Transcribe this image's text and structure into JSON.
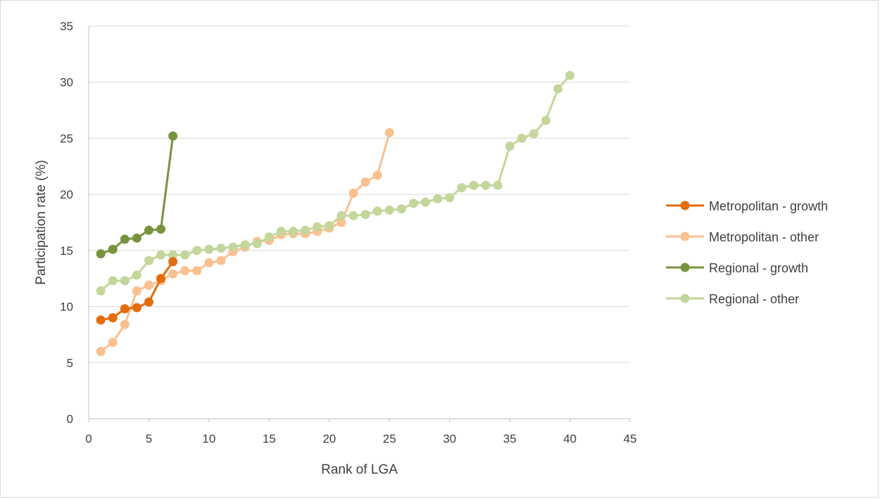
{
  "chart_data": {
    "type": "line",
    "title": "",
    "xlabel": "Rank of LGA",
    "ylabel": "Participation rate (%)",
    "xlim": [
      0,
      45
    ],
    "ylim": [
      0,
      35
    ],
    "xticks": [
      "0",
      "5",
      "10",
      "15",
      "20",
      "25",
      "30",
      "35",
      "40",
      "45"
    ],
    "yticks": [
      "0",
      "5",
      "10",
      "15",
      "20",
      "25",
      "30",
      "35"
    ],
    "grid": "horizontal",
    "legend": "right",
    "series": [
      {
        "name": "Metropolitan - growth",
        "color": "#e46c0a",
        "x": [
          1,
          2,
          3,
          4,
          5,
          6,
          7
        ],
        "y": [
          8.8,
          9.0,
          9.8,
          9.9,
          10.4,
          12.5,
          14.0
        ]
      },
      {
        "name": "Metropolitan - other",
        "color": "#fac090",
        "x": [
          1,
          2,
          3,
          4,
          5,
          6,
          7,
          8,
          9,
          10,
          11,
          12,
          13,
          14,
          15,
          16,
          17,
          18,
          19,
          20,
          21,
          22,
          23,
          24,
          25
        ],
        "y": [
          6.0,
          6.8,
          8.4,
          11.4,
          11.9,
          12.3,
          12.9,
          13.2,
          13.2,
          13.9,
          14.1,
          14.9,
          15.3,
          15.8,
          15.9,
          16.4,
          16.5,
          16.5,
          16.7,
          17.0,
          17.5,
          20.1,
          21.1,
          21.7,
          25.5
        ]
      },
      {
        "name": "Regional - growth",
        "color": "#77933c",
        "x": [
          1,
          2,
          3,
          4,
          5,
          6,
          7
        ],
        "y": [
          14.7,
          15.1,
          16.0,
          16.1,
          16.8,
          16.9,
          25.2
        ]
      },
      {
        "name": "Regional - other",
        "color": "#c3d69b",
        "x": [
          1,
          2,
          3,
          4,
          5,
          6,
          7,
          8,
          9,
          10,
          11,
          12,
          13,
          14,
          15,
          16,
          17,
          18,
          19,
          20,
          21,
          22,
          23,
          24,
          25,
          26,
          27,
          28,
          29,
          30,
          31,
          32,
          33,
          34,
          35,
          36,
          37,
          38,
          39,
          40
        ],
        "y": [
          11.4,
          12.3,
          12.3,
          12.8,
          14.1,
          14.6,
          14.6,
          14.6,
          15.0,
          15.1,
          15.2,
          15.3,
          15.5,
          15.6,
          16.2,
          16.7,
          16.7,
          16.8,
          17.1,
          17.2,
          18.1,
          18.1,
          18.2,
          18.5,
          18.6,
          18.7,
          19.2,
          19.3,
          19.6,
          19.7,
          20.6,
          20.8,
          20.8,
          20.8,
          24.3,
          25.0,
          25.4,
          26.6,
          29.4,
          30.6
        ]
      }
    ]
  }
}
